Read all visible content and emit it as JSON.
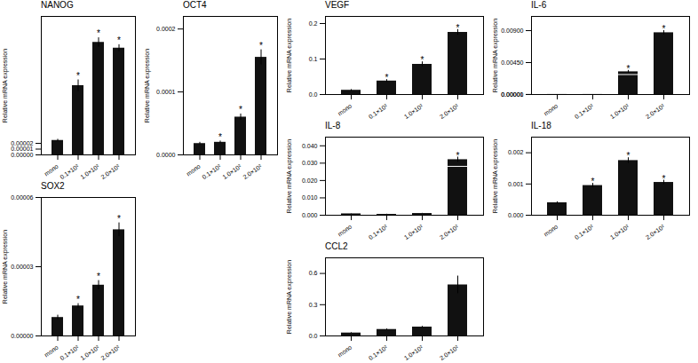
{
  "chart_data": [
    {
      "type": "bar",
      "title": "NANOG",
      "ylabel": "Relative mRNA expression",
      "categories": [
        "mono",
        "0.1×10²",
        "1.0×10²",
        "2.0×10²"
      ],
      "values": [
        2.5e-05,
        0.00012,
        0.000195,
        0.000185
      ],
      "errors": [
        2e-06,
        1e-05,
        8e-06,
        6e-06
      ],
      "color": "#111111",
      "ylim": [
        0,
        0.00024
      ],
      "yticks": [
        {
          "value": 0,
          "label": "0.00000"
        },
        1e-05,
        2e-05
      ],
      "grid": false,
      "annotations": [
        {
          "category": "0.1×10²",
          "text": "*"
        },
        {
          "category": "1.0×10²",
          "text": "*"
        },
        {
          "category": "2.0×10²",
          "text": "*"
        }
      ]
    },
    {
      "type": "bar",
      "title": "OCT4",
      "ylabel": "Relative mRNA expression",
      "categories": [
        "mono",
        "0.1×10²",
        "1.0×10²",
        "2.0×10²"
      ],
      "values": [
        1.8e-05,
        2e-05,
        6e-05,
        0.000155
      ],
      "errors": [
        2e-06,
        2e-06,
        5e-06,
        1.2e-05
      ],
      "color": "#111111",
      "ylim": [
        0,
        0.00022
      ],
      "yticks": [
        {
          "value": 0,
          "label": "0.0000"
        },
        0.0001,
        0.0002
      ],
      "grid": false,
      "annotations": [
        {
          "category": "0.1×10²",
          "text": "*"
        },
        {
          "category": "1.0×10²",
          "text": "*"
        },
        {
          "category": "2.0×10²",
          "text": "*"
        }
      ]
    },
    {
      "type": "bar",
      "title": "SOX2",
      "ylabel": "Relative mRNA expression",
      "categories": [
        "mono",
        "0.1×10²",
        "1.0×10²",
        "2.0×10²"
      ],
      "values": [
        8e-06,
        1.3e-05,
        2.2e-05,
        4.6e-05
      ],
      "errors": [
        1e-06,
        1e-06,
        2e-06,
        3e-06
      ],
      "color": "#111111",
      "ylim": [
        0,
        6e-05
      ],
      "yticks": [
        {
          "value": 0,
          "label": "0.00000"
        },
        3e-05,
        6e-05
      ],
      "grid": false,
      "annotations": [
        {
          "category": "0.1×10²",
          "text": "*"
        },
        {
          "category": "1.0×10²",
          "text": "*"
        },
        {
          "category": "2.0×10²",
          "text": "*"
        }
      ]
    },
    {
      "type": "bar",
      "title": "VEGF",
      "ylabel": "Relative mRNA expression",
      "categories": [
        "mono",
        "0.1×10²",
        "1.0×10²",
        "2.0×10²"
      ],
      "values": [
        0.012,
        0.038,
        0.085,
        0.175
      ],
      "errors": [
        0.002,
        0.004,
        0.007,
        0.008
      ],
      "color": "#111111",
      "ylim": [
        0,
        0.22
      ],
      "yticks": [
        {
          "value": 0,
          "label": "0.0"
        },
        0.1,
        0.2
      ],
      "grid": false,
      "annotations": [
        {
          "category": "0.1×10²",
          "text": "*"
        },
        {
          "category": "1.0×10²",
          "text": "*"
        },
        {
          "category": "2.0×10²",
          "text": "*"
        }
      ]
    },
    {
      "type": "bar",
      "title": "IL-6",
      "ylabel": "Relative mRNA expression",
      "categories": [
        "mono",
        "0.1×10²",
        "1.0×10²",
        "2.0×10²"
      ],
      "values": [
        1e-05,
        1e-05,
        0.0032,
        0.0087
      ],
      "errors": [
        1e-06,
        1e-06,
        0.0002,
        0.0003
      ],
      "color": "#111111",
      "ylim": [
        0,
        0.011
      ],
      "yticks": [
        {
          "value": 0,
          "label": "0.00000"
        },
        1e-05,
        {
          "value": 0.0045,
          "label": "0.00450"
        },
        {
          "value": 0.009,
          "label": "0.00900"
        }
      ],
      "grid": false,
      "annotations": [
        {
          "category": "1.0×10²",
          "text": "*"
        },
        {
          "category": "2.0×10²",
          "text": "*"
        }
      ],
      "bar_lines": [
        {
          "category": "1.0×10²",
          "value": 0.002816,
          "color": "#ffffff"
        }
      ]
    },
    {
      "type": "bar",
      "title": "IL-8",
      "ylabel": "Relative mRNA expression",
      "categories": [
        "mono",
        "0.1×10²",
        "1.0×10²",
        "2.0×10²"
      ],
      "values": [
        0.0008,
        0.0005,
        0.001,
        0.032
      ],
      "errors": [
        0.0001,
        0.0001,
        0.0001,
        0.0015
      ],
      "color": "#111111",
      "ylim": [
        0,
        0.045
      ],
      "yticks": [
        {
          "value": 0,
          "label": "0.000"
        },
        {
          "value": 0.01,
          "label": "0.010"
        },
        {
          "value": 0.02,
          "label": "0.020"
        },
        {
          "value": 0.03,
          "label": "0.030"
        },
        {
          "value": 0.04,
          "label": "0.040"
        }
      ],
      "grid": false,
      "annotations": [
        {
          "category": "2.0×10²",
          "text": "*"
        }
      ],
      "bar_lines": [
        {
          "category": "2.0×10²",
          "value": 0.02816,
          "color": "#ffffff"
        }
      ]
    },
    {
      "type": "bar",
      "title": "IL-18",
      "ylabel": "Relative mRNA expression",
      "categories": [
        "mono",
        "0.1×10²",
        "1.0×10²",
        "2.0×10²"
      ],
      "values": [
        0.0004,
        0.00095,
        0.00175,
        0.00105
      ],
      "errors": [
        3e-05,
        7e-05,
        9e-05,
        7e-05
      ],
      "color": "#111111",
      "ylim": [
        0,
        0.0025
      ],
      "yticks": [
        {
          "value": 0,
          "label": "0.000"
        },
        0.001,
        0.002
      ],
      "grid": false,
      "annotations": [
        {
          "category": "0.1×10²",
          "text": "*"
        },
        {
          "category": "1.0×10²",
          "text": "*"
        },
        {
          "category": "2.0×10²",
          "text": "*"
        }
      ]
    },
    {
      "type": "bar",
      "title": "CCL2",
      "ylabel": "Relative mRNA expression",
      "categories": [
        "mono",
        "0.1×10²",
        "1.0×10²",
        "2.0×10²"
      ],
      "values": [
        0.028,
        0.062,
        0.085,
        0.49
      ],
      "errors": [
        0.003,
        0.005,
        0.007,
        0.085
      ],
      "color": "#111111",
      "ylim": [
        0,
        0.75
      ],
      "yticks": [
        {
          "value": 0,
          "label": "0.0"
        },
        0.3,
        0.6
      ],
      "grid": false
    }
  ]
}
